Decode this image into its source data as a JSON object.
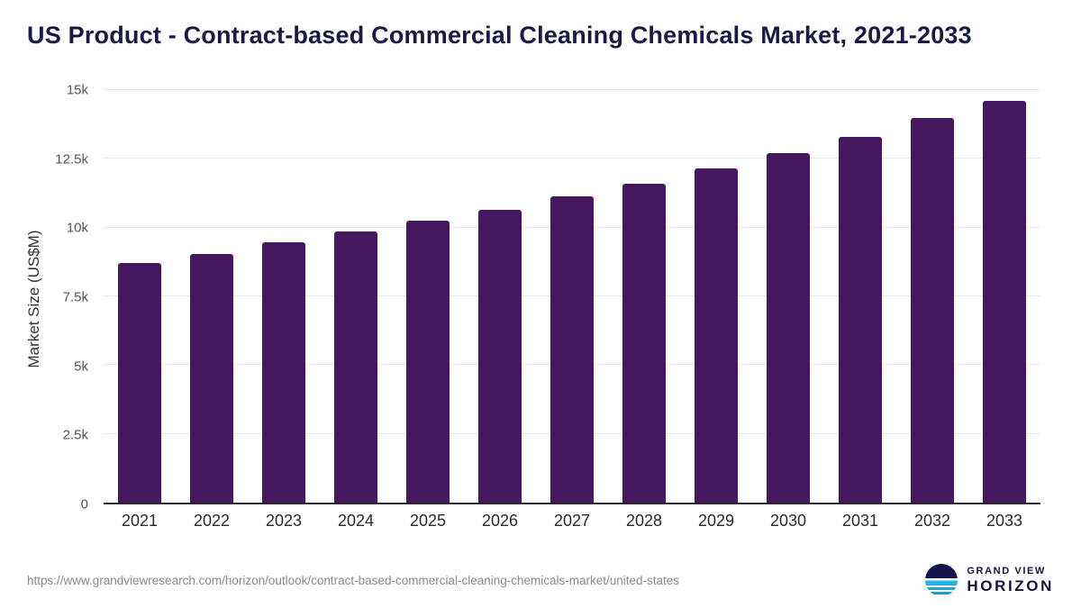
{
  "title": "US Product - Contract-based Commercial Cleaning Chemicals Market, 2021-2033",
  "colors": {
    "bar": "#45175c",
    "title_text": "#191945",
    "axis_text": "#2b2b2b",
    "tick_text": "#555555",
    "grid": "#e7e7e7",
    "url_text": "#8b8b8b",
    "brand_navy": "#15153f",
    "logo_teal": "#27b7e8"
  },
  "chart_data": {
    "type": "bar",
    "title": "US Product - Contract-based Commercial Cleaning Chemicals Market, 2021-2033",
    "xlabel": "",
    "ylabel": "Market Size (US$M)",
    "ylim": [
      0,
      15000
    ],
    "grid": true,
    "legend": "none",
    "categories": [
      "2021",
      "2022",
      "2023",
      "2024",
      "2025",
      "2026",
      "2027",
      "2028",
      "2029",
      "2030",
      "2031",
      "2032",
      "2033"
    ],
    "values": [
      8700,
      9050,
      9450,
      9850,
      10250,
      10650,
      11150,
      11600,
      12150,
      12700,
      13300,
      14000,
      14600
    ],
    "yticks": [
      {
        "value": 0,
        "label": "0"
      },
      {
        "value": 2500,
        "label": "2.5k"
      },
      {
        "value": 5000,
        "label": "5k"
      },
      {
        "value": 7500,
        "label": "7.5k"
      },
      {
        "value": 10000,
        "label": "10k"
      },
      {
        "value": 12500,
        "label": "12.5k"
      },
      {
        "value": 15000,
        "label": "15k"
      }
    ]
  },
  "footer": {
    "source_url": "https://www.grandviewresearch.com/horizon/outlook/contract-based-commercial-cleaning-chemicals-market/united-states",
    "brand": {
      "line1": "GRAND VIEW",
      "line2": "HORIZON"
    }
  }
}
